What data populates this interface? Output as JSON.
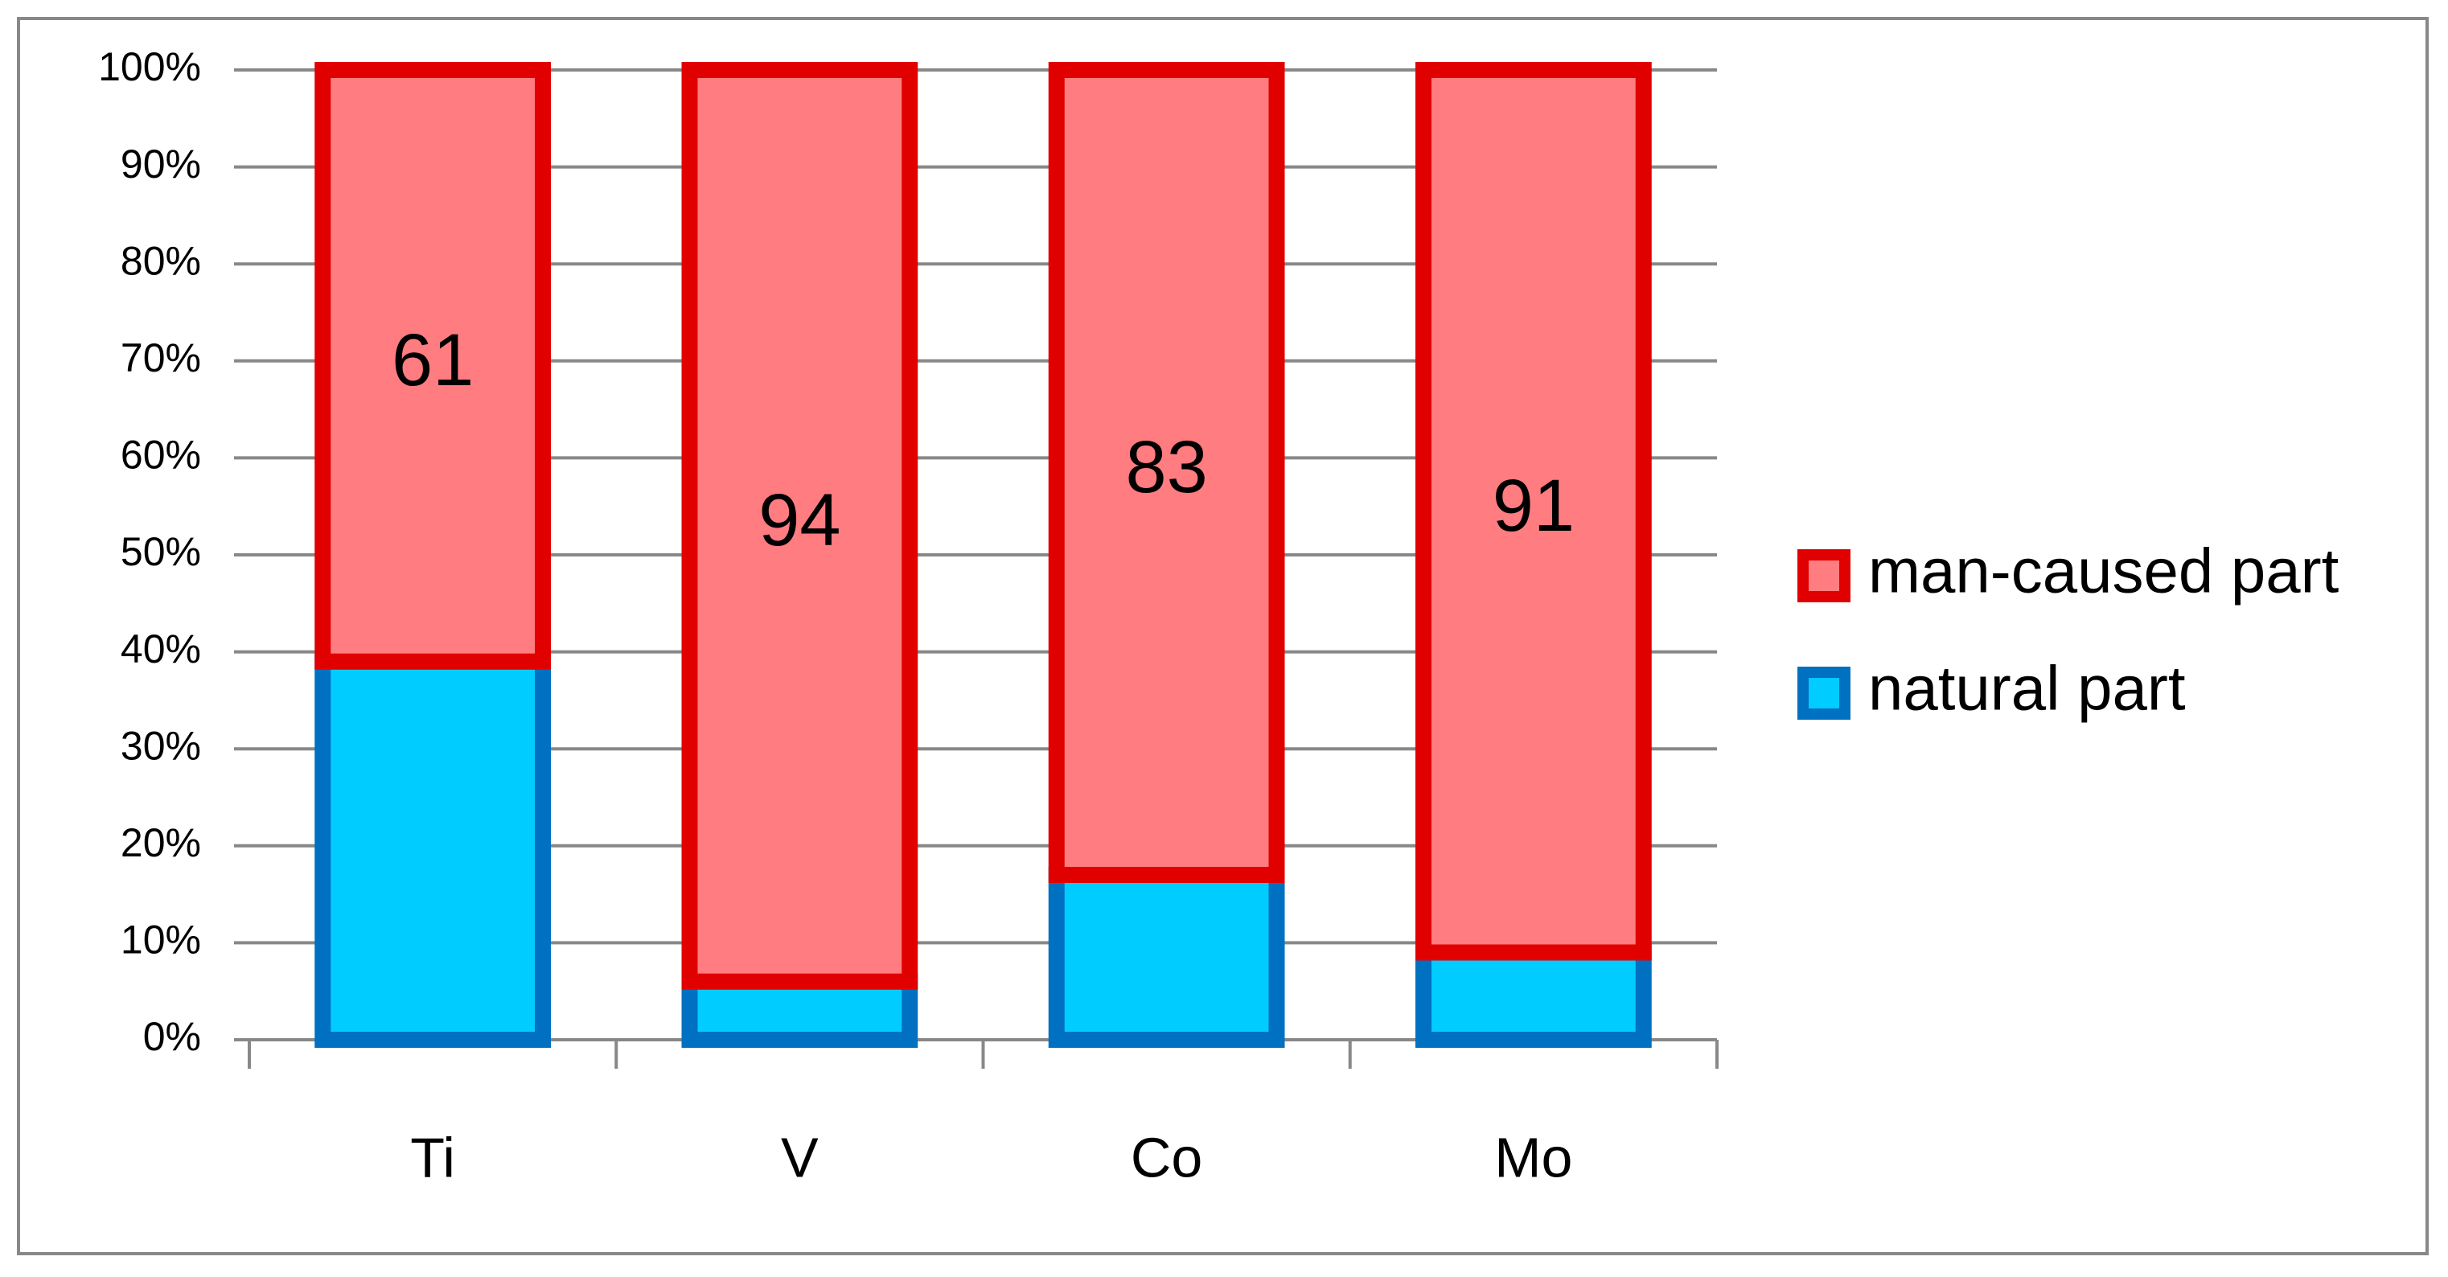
{
  "chart_data": {
    "type": "stacked_bar",
    "categories": [
      "Ti",
      "V",
      "Co",
      "Mo"
    ],
    "series": [
      {
        "name": "natural part",
        "color": "#00ccff",
        "edge": "#0070c0",
        "values": [
          39,
          6,
          17,
          9
        ]
      },
      {
        "name": "man-caused part",
        "color": "#ff7c80",
        "edge": "#e00000",
        "values": [
          61,
          94,
          83,
          91
        ]
      }
    ],
    "data_labels_series": 1,
    "ylim": [
      0,
      100
    ],
    "yticks": [
      {
        "value": 0,
        "label": "0%"
      },
      {
        "value": 10,
        "label": "10%"
      },
      {
        "value": 20,
        "label": "20%"
      },
      {
        "value": 30,
        "label": "30%"
      },
      {
        "value": 40,
        "label": "40%"
      },
      {
        "value": 50,
        "label": "50%"
      },
      {
        "value": 60,
        "label": "60%"
      },
      {
        "value": 70,
        "label": "70%"
      },
      {
        "value": 80,
        "label": "80%"
      },
      {
        "value": 90,
        "label": "90%"
      },
      {
        "value": 100,
        "label": "100%"
      }
    ],
    "grid": true,
    "legend": "right"
  }
}
